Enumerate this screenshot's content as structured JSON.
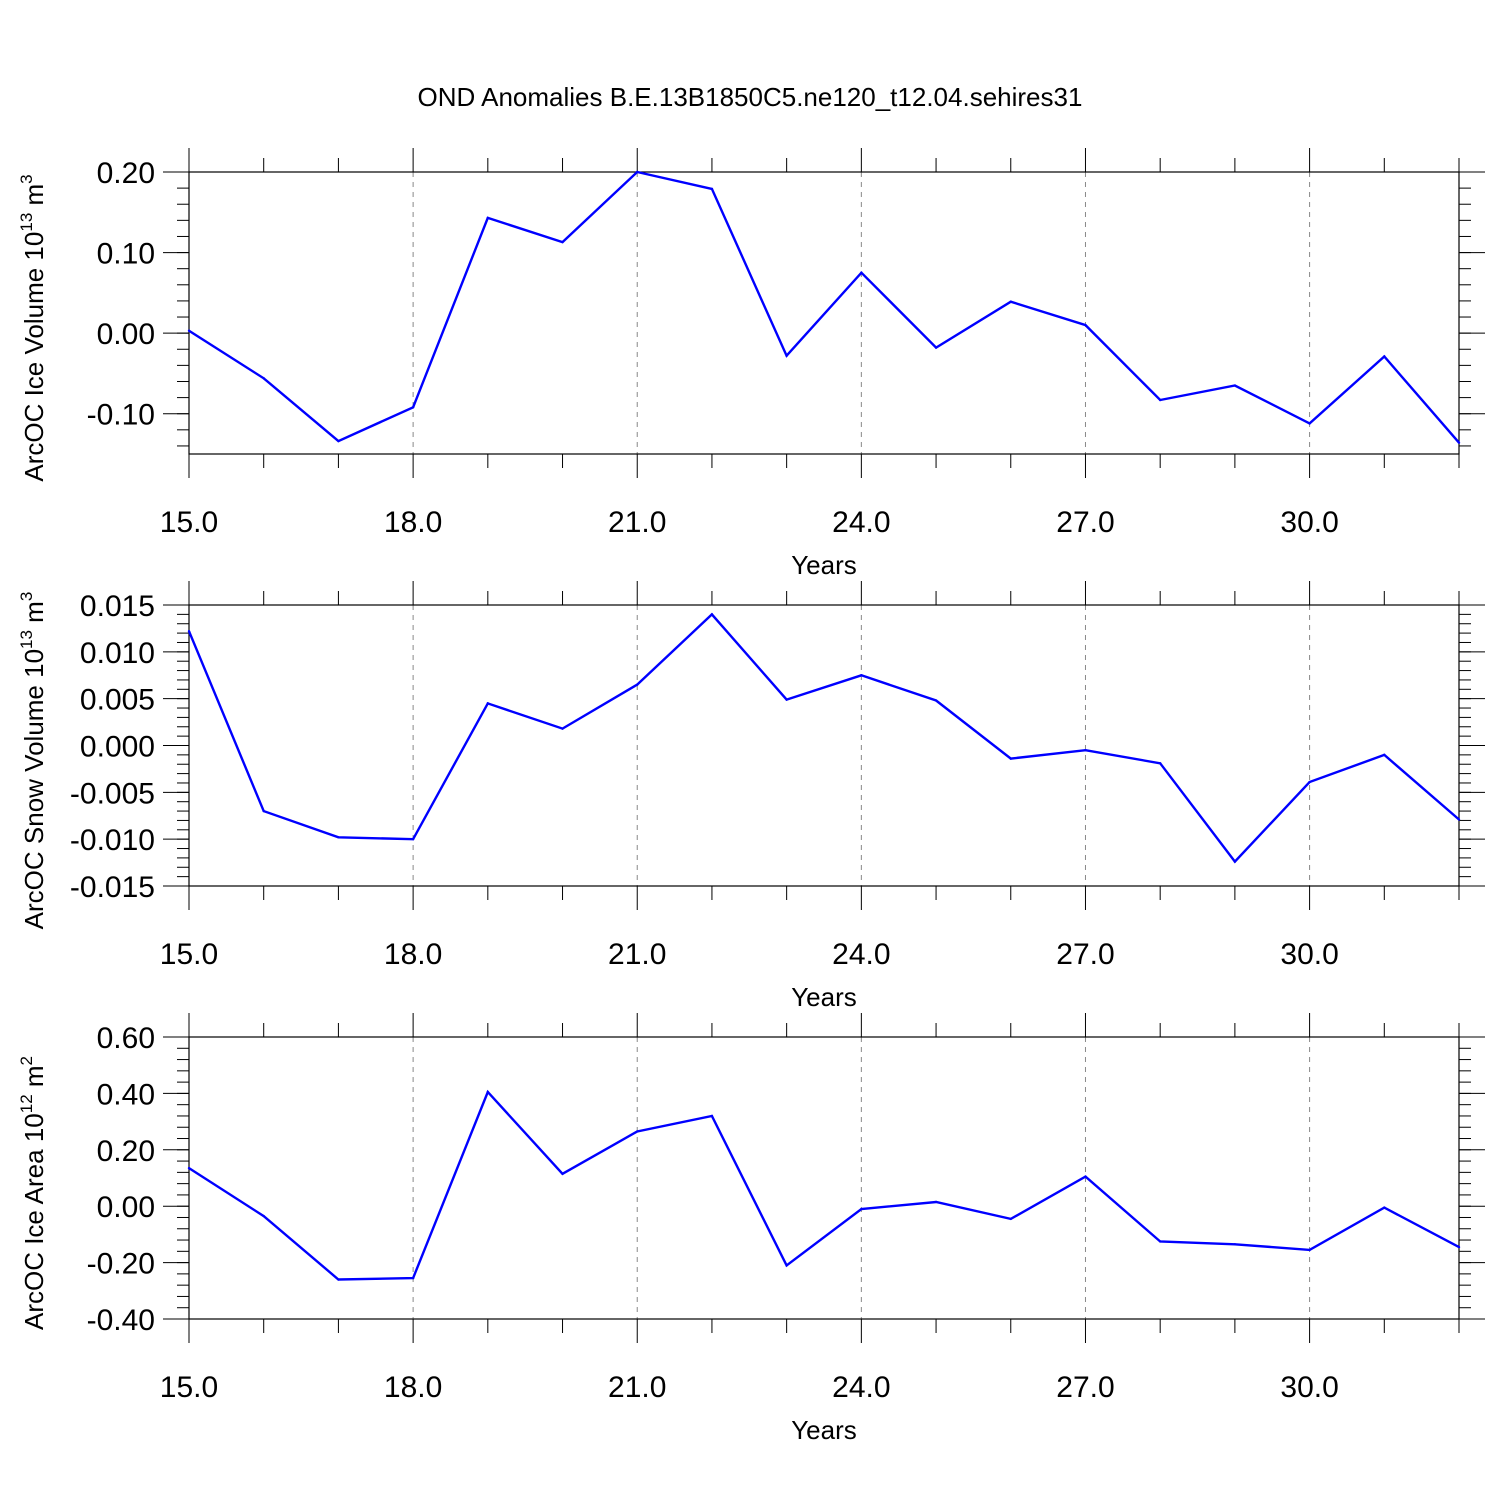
{
  "title": "OND Anomalies B.E.13B1850C5.ne120_t12.04.sehires31",
  "chart_data": [
    {
      "type": "line",
      "xlabel": "Years",
      "ylabel": "ArcOC Ice Volume 10",
      "ylabel_exp": "13",
      "ylabel_unit": "m",
      "ylabel_unit_exp": "3",
      "xlim": [
        15,
        32
      ],
      "ylim": [
        -0.15,
        0.2
      ],
      "xticks": [
        15,
        18,
        21,
        24,
        27,
        30
      ],
      "xtick_labels": [
        "15.0",
        "18.0",
        "21.0",
        "24.0",
        "27.0",
        "30.0"
      ],
      "yticks": [
        0.2,
        0.1,
        0.0,
        -0.1
      ],
      "ytick_labels": [
        "0.20",
        "0.10",
        "0.00",
        "-0.10"
      ],
      "grid": "vertical dashed at major x ticks",
      "line_color": "#0000ff",
      "x": [
        15,
        16,
        17,
        18,
        19,
        20,
        21,
        22,
        23,
        24,
        25,
        26,
        27,
        28,
        29,
        30,
        31,
        32
      ],
      "y": [
        0.003,
        -0.056,
        -0.134,
        -0.092,
        0.143,
        0.113,
        0.2,
        0.179,
        -0.028,
        0.075,
        -0.018,
        0.039,
        0.01,
        -0.083,
        -0.065,
        -0.112,
        -0.029,
        -0.136
      ]
    },
    {
      "type": "line",
      "xlabel": "Years",
      "ylabel": "ArcOC Snow Volume 10",
      "ylabel_exp": "13",
      "ylabel_unit": "m",
      "ylabel_unit_exp": "3",
      "xlim": [
        15,
        32
      ],
      "ylim": [
        -0.015,
        0.015
      ],
      "xticks": [
        15,
        18,
        21,
        24,
        27,
        30
      ],
      "xtick_labels": [
        "15.0",
        "18.0",
        "21.0",
        "24.0",
        "27.0",
        "30.0"
      ],
      "yticks": [
        0.015,
        0.01,
        0.005,
        0.0,
        -0.005,
        -0.01,
        -0.015
      ],
      "ytick_labels": [
        "0.015",
        "0.010",
        "0.005",
        "0.000",
        "-0.005",
        "-0.010",
        "-0.015"
      ],
      "grid": "vertical dashed at major x ticks",
      "line_color": "#0000ff",
      "x": [
        15,
        16,
        17,
        18,
        19,
        20,
        21,
        22,
        23,
        24,
        25,
        26,
        27,
        28,
        29,
        30,
        31,
        32
      ],
      "y": [
        0.0122,
        -0.007,
        -0.0098,
        -0.01,
        0.0045,
        0.0018,
        0.0065,
        0.014,
        0.0049,
        0.0075,
        0.0048,
        -0.0014,
        -0.0005,
        -0.0019,
        -0.0124,
        -0.0039,
        -0.001,
        -0.0079
      ]
    },
    {
      "type": "line",
      "xlabel": "Years",
      "ylabel": "ArcOC Ice Area 10",
      "ylabel_exp": "12",
      "ylabel_unit": "m",
      "ylabel_unit_exp": "2",
      "xlim": [
        15,
        32
      ],
      "ylim": [
        -0.4,
        0.6
      ],
      "xticks": [
        15,
        18,
        21,
        24,
        27,
        30
      ],
      "xtick_labels": [
        "15.0",
        "18.0",
        "21.0",
        "24.0",
        "27.0",
        "30.0"
      ],
      "yticks": [
        0.6,
        0.4,
        0.2,
        0.0,
        -0.2,
        -0.4
      ],
      "ytick_labels": [
        "0.60",
        "0.40",
        "0.20",
        "0.00",
        "-0.20",
        "-0.40"
      ],
      "grid": "vertical dashed at major x ticks",
      "line_color": "#0000ff",
      "x": [
        15,
        16,
        17,
        18,
        19,
        20,
        21,
        22,
        23,
        24,
        25,
        26,
        27,
        28,
        29,
        30,
        31,
        32
      ],
      "y": [
        0.135,
        -0.035,
        -0.26,
        -0.255,
        0.405,
        0.115,
        0.265,
        0.32,
        -0.21,
        -0.01,
        0.015,
        -0.045,
        0.105,
        -0.125,
        -0.135,
        -0.155,
        -0.005,
        -0.145
      ]
    }
  ]
}
